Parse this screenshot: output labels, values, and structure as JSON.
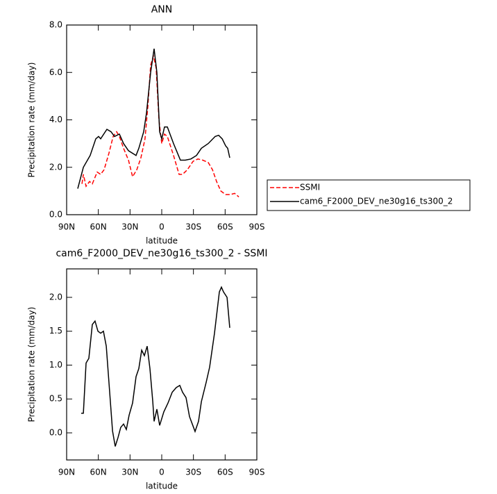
{
  "chart_data": [
    {
      "type": "line",
      "title": "ANN",
      "xlabel": "latitude",
      "ylabel": "Precipitation rate (mm/day)",
      "xlim": [
        90,
        -90
      ],
      "ylim": [
        0,
        8
      ],
      "xticks": [
        {
          "value": 90,
          "label": "90N"
        },
        {
          "value": 60,
          "label": "60N"
        },
        {
          "value": 30,
          "label": "30N"
        },
        0,
        {
          "value": -30,
          "label": "30S"
        },
        {
          "value": -60,
          "label": "60S"
        },
        {
          "value": -90,
          "label": "90S"
        }
      ],
      "yticks": [
        {
          "value": 0,
          "label": "0.0"
        },
        {
          "value": 2,
          "label": "2.0"
        },
        {
          "value": 4,
          "label": "4.0"
        },
        {
          "value": 6,
          "label": "6.0"
        },
        {
          "value": 8,
          "label": "8.0"
        }
      ],
      "legend": "right",
      "series": [
        {
          "name": "SSMI",
          "color": "#ff0000",
          "dash": true,
          "x": [
            75.5,
            74.2,
            71.6,
            68.3,
            65.7,
            61.1,
            57.8,
            54.5,
            49.9,
            46,
            42.7,
            40.1,
            36.1,
            31.5,
            27.6,
            23.6,
            19.7,
            15.8,
            13.1,
            10.5,
            7.9,
            5.3,
            2.6,
            0,
            -2.6,
            -5.3,
            -11.2,
            -16.4,
            -19.7,
            -24.3,
            -29.6,
            -34.2,
            -38.8,
            -44,
            -48,
            -51.9,
            -55.9,
            -60.5,
            -65.1,
            -69,
            -73
          ],
          "values": [
            1.3,
            1.7,
            1.2,
            1.4,
            1.3,
            1.8,
            1.7,
            1.9,
            2.6,
            3.3,
            3.5,
            3.3,
            2.8,
            2.3,
            1.6,
            1.9,
            2.4,
            3.2,
            4.6,
            6.3,
            6.7,
            6.2,
            4.0,
            3.0,
            3.4,
            3.3,
            2.5,
            1.7,
            1.7,
            1.9,
            2.25,
            2.35,
            2.3,
            2.2,
            1.9,
            1.4,
            1.0,
            0.85,
            0.85,
            0.9,
            0.75
          ]
        },
        {
          "name": "cam6_F2000_DEV_ne30g16_ts300_2",
          "color": "#000000",
          "dash": false,
          "x": [
            79.5,
            74.2,
            67.7,
            62.4,
            59.8,
            57.8,
            51.9,
            48,
            44.7,
            40.1,
            36.1,
            31.5,
            24.3,
            21.7,
            17.1,
            14.4,
            10.5,
            7.2,
            4.6,
            2,
            0,
            -2.6,
            -5.3,
            -11.2,
            -17.7,
            -22.3,
            -27.6,
            -32.9,
            -37.5,
            -44,
            -50.6,
            -53.9,
            -57.2,
            -60.5,
            -62.4,
            -64.4
          ],
          "values": [
            1.1,
            2.0,
            2.5,
            3.2,
            3.3,
            3.2,
            3.6,
            3.5,
            3.3,
            3.4,
            3.0,
            2.7,
            2.5,
            2.8,
            3.5,
            4.3,
            6.0,
            7.0,
            6.0,
            3.5,
            3.2,
            3.7,
            3.7,
            3.0,
            2.3,
            2.3,
            2.35,
            2.5,
            2.8,
            3.0,
            3.3,
            3.35,
            3.2,
            2.9,
            2.8,
            2.4
          ]
        }
      ]
    },
    {
      "type": "line",
      "title": "cam6_F2000_DEV_ne30g16_ts300_2 - SSMI",
      "xlabel": "latitude",
      "ylabel": "Precipitation rate (mm/day)",
      "xlim": [
        90,
        -90
      ],
      "ylim": [
        -0.4,
        2.42
      ],
      "xticks": [
        {
          "value": 90,
          "label": "90N"
        },
        {
          "value": 60,
          "label": "60N"
        },
        {
          "value": 30,
          "label": "30N"
        },
        0,
        {
          "value": -30,
          "label": "30S"
        },
        {
          "value": -60,
          "label": "60S"
        },
        {
          "value": -90,
          "label": "90S"
        }
      ],
      "yticks": [
        {
          "value": 0,
          "label": "0.0"
        },
        {
          "value": 0.5,
          "label": "0.5"
        },
        {
          "value": 1,
          "label": "1.0"
        },
        {
          "value": 1.5,
          "label": "1.5"
        },
        {
          "value": 2,
          "label": "2.0"
        }
      ],
      "series": [
        {
          "color": "#000000",
          "dash": false,
          "x": [
            76.2,
            74.2,
            71.6,
            69,
            65.7,
            63.1,
            60.4,
            57.8,
            55.2,
            52.5,
            49.3,
            46.6,
            44,
            41.4,
            38.8,
            36.1,
            33.5,
            30.9,
            27.6,
            24.3,
            21.7,
            19,
            16.4,
            13.8,
            11.2,
            8.5,
            7.2,
            4.6,
            2,
            -2,
            -5.9,
            -9.9,
            -13.8,
            -17.1,
            -19.7,
            -23,
            -26.3,
            -29.6,
            -31.5,
            -34.8,
            -37.5,
            -42.1,
            -45.3,
            -49.9,
            -54.5,
            -56.5,
            -58.5,
            -61.8,
            -64.4
          ],
          "values": [
            0.29,
            0.29,
            1.03,
            1.1,
            1.6,
            1.65,
            1.5,
            1.47,
            1.5,
            1.28,
            0.6,
            0.03,
            -0.2,
            -0.07,
            0.08,
            0.13,
            0.05,
            0.26,
            0.44,
            0.83,
            0.95,
            1.22,
            1.14,
            1.28,
            0.95,
            0.46,
            0.17,
            0.35,
            0.11,
            0.31,
            0.44,
            0.6,
            0.67,
            0.7,
            0.6,
            0.52,
            0.24,
            0.1,
            0.02,
            0.17,
            0.46,
            0.75,
            0.97,
            1.47,
            2.08,
            2.15,
            2.08,
            2.0,
            1.55
          ]
        }
      ]
    }
  ]
}
